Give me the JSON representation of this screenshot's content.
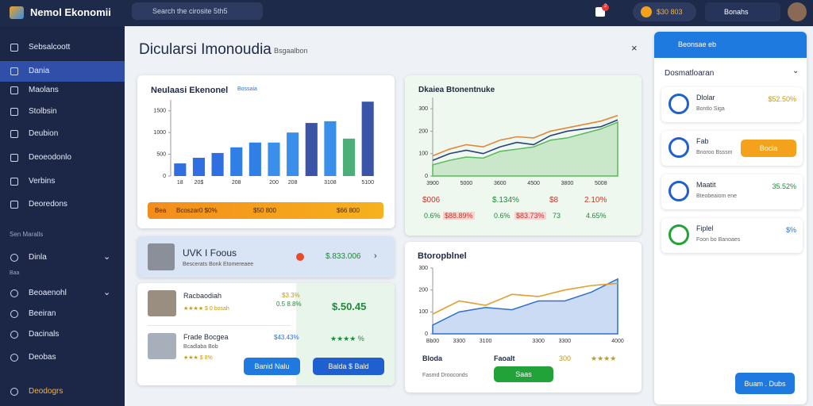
{
  "topbar": {
    "brand": "Nemol Ekonomii",
    "search": "Search the cirosite 5th5",
    "notifications": "2",
    "balance": "$30 803",
    "account": "Bonahs"
  },
  "sidebar": {
    "items": [
      "Sebsalcoott",
      "Dania",
      "Maolans",
      "Stolbsin",
      "Deubion",
      "Deoeodonlo",
      "Verbins",
      "Deoredons"
    ],
    "section": "Sen Maralls",
    "section_items": [
      "Dinla",
      "Baa",
      "Beoaenohl",
      "Beeiran",
      "Dacinals",
      "Deobas"
    ],
    "footer": "Deodogrs"
  },
  "header": {
    "title": "Dicularsi Imonoudia",
    "subtitle": "Bsgaalbon"
  },
  "card_bar": {
    "badge": "Bossaia",
    "summary": [
      "Bea",
      "Bcoszar0 $0%",
      "$50 800",
      "$66 800"
    ]
  },
  "card_market": {
    "stats": [
      [
        "$006",
        "$.134%",
        "$8",
        "2.10%"
      ],
      [
        "0.6%",
        "$88.89%",
        "0.6%",
        "$83.73%",
        "73",
        "4.65%"
      ]
    ]
  },
  "promo": {
    "title": "UVK I Foous",
    "subtitle": "Bescerats Bonk Etomereaee",
    "value": "$.833.006"
  },
  "listing": {
    "rows": [
      {
        "name": "Racbaodiah",
        "meta": "★★★★ $ 0 bosah",
        "price": "$3.3%",
        "change": "0.5 8.8%"
      },
      {
        "name": "Frade Bocgea",
        "meta": "Bcadlaba Bob",
        "rating": "★★★ $ 8%",
        "price": "$43.43%"
      }
    ],
    "highlight": "$.50.45",
    "rating": "★★★★ %",
    "buttons": [
      "Banid Nalu",
      "Balda $ Bald"
    ]
  },
  "card_line": {
    "footer": [
      "Bloda",
      "Faoalt",
      "300",
      "★★★★"
    ],
    "note": "Fasmd Drooconds",
    "button": "Saas"
  },
  "panel": {
    "header": "Beonsae eb",
    "section": "Dosmatloaran",
    "items": [
      {
        "name": "Dlolar",
        "sub": "Bontlo Siga",
        "value": "$52.50%"
      },
      {
        "name": "Fab",
        "sub": "Bnoroo Bsssm",
        "button": "Bocla"
      },
      {
        "name": "Maatit",
        "sub": "Bteobeaiom ene",
        "value": "35.52%"
      },
      {
        "name": "Fiplel",
        "sub": "Foon bo Banoaes",
        "value": "$%"
      }
    ],
    "button": "Buam . Dubs"
  },
  "chart_data": [
    {
      "type": "bar",
      "title": "Neulaasi Ekenonel",
      "categories": [
        "18",
        "20$",
        null,
        "208",
        null,
        "200",
        "208",
        null,
        "3108",
        null,
        "5100"
      ],
      "values": [
        290,
        420,
        530,
        660,
        770,
        770,
        1000,
        1220,
        1260,
        860,
        1710
      ],
      "colors": [
        "#2f6fe0",
        "#2f6fe0",
        "#2f6fe0",
        "#2f7fe6",
        "#2f7fe6",
        "#3a8fea",
        "#3a8fea",
        "#3a55a8",
        "#3a8fea",
        "#4caf7a",
        "#3a55a8"
      ],
      "ylim": [
        0,
        1750
      ],
      "yticks": [
        0,
        500,
        1000,
        1500
      ]
    },
    {
      "type": "line",
      "title": "Dkaiea Btonentnuke",
      "categories": [
        "3900",
        null,
        "5000",
        null,
        "3600",
        null,
        "4500",
        null,
        "3800",
        null,
        "5008",
        null
      ],
      "series": [
        {
          "name": "Area",
          "color": "#5cb85c",
          "area": true,
          "values": [
            50,
            70,
            85,
            80,
            110,
            120,
            130,
            160,
            170,
            190,
            210,
            240
          ]
        },
        {
          "name": "Dark",
          "color": "#2a3f7a",
          "values": [
            70,
            100,
            115,
            100,
            130,
            150,
            140,
            180,
            200,
            210,
            220,
            250
          ]
        },
        {
          "name": "Orange",
          "color": "#e0873a",
          "values": [
            90,
            120,
            140,
            130,
            160,
            175,
            170,
            200,
            215,
            230,
            245,
            270
          ]
        }
      ],
      "ylim": [
        0,
        350
      ],
      "yticks": [
        0,
        100,
        200,
        300
      ]
    },
    {
      "type": "line",
      "title": "Btoropblnel",
      "categories": [
        "Bb00",
        "3300",
        "3100",
        null,
        "3300",
        "3300",
        null,
        "4000"
      ],
      "series": [
        {
          "name": "Blue",
          "color": "#2f6fd0",
          "area": true,
          "values": [
            40,
            100,
            120,
            110,
            150,
            150,
            190,
            250
          ]
        },
        {
          "name": "Orange",
          "color": "#e0a030",
          "values": [
            90,
            150,
            130,
            180,
            170,
            200,
            220,
            230
          ]
        }
      ],
      "ylim": [
        0,
        300
      ],
      "yticks": [
        0,
        100,
        200,
        300
      ]
    }
  ]
}
